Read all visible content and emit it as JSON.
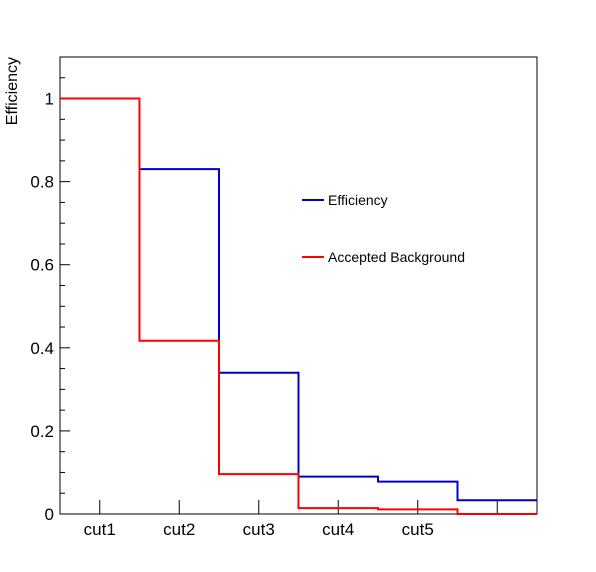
{
  "chart_data": {
    "type": "line",
    "step": true,
    "categories": [
      "cut1",
      "cut2",
      "cut3",
      "cut4",
      "cut5",
      ""
    ],
    "ylabel": "Efficiency",
    "xlabel": "",
    "title": "",
    "ylim": [
      0,
      1.1
    ],
    "yticks": [
      "0",
      "0.2",
      "0.4",
      "0.6",
      "0.8",
      "1"
    ],
    "grid": false,
    "legend_position": "center-right",
    "series": [
      {
        "name": "Efficiency",
        "color": "#0000cc",
        "values": [
          1.0,
          0.83,
          0.34,
          0.09,
          0.078,
          0.033
        ]
      },
      {
        "name": "Accepted Background",
        "color": "#ff0000",
        "values": [
          1.0,
          0.417,
          0.096,
          0.014,
          0.011,
          0.0
        ]
      }
    ]
  }
}
